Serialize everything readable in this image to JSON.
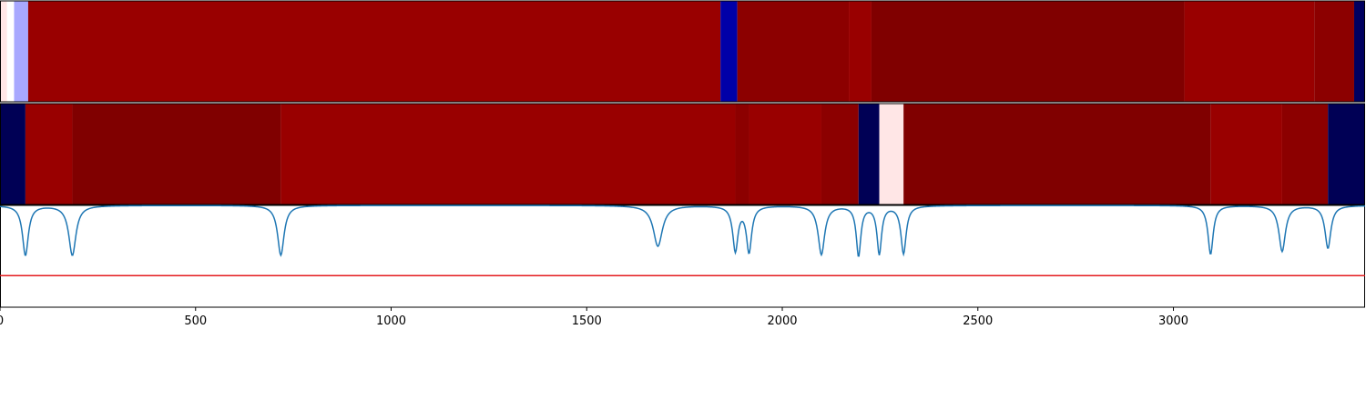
{
  "chart_data": [
    {
      "type": "heatmap",
      "x_range": [
        0,
        3490
      ],
      "segments": [
        {
          "x0": 0,
          "x1": 18,
          "color": "#ffe6e6"
        },
        {
          "x0": 18,
          "x1": 36,
          "color": "#ffffff"
        },
        {
          "x0": 36,
          "x1": 72,
          "color": "#a8a8ff"
        },
        {
          "x0": 72,
          "x1": 1842,
          "color": "#990000"
        },
        {
          "x0": 1842,
          "x1": 1885,
          "color": "#0000a8"
        },
        {
          "x0": 1885,
          "x1": 2170,
          "color": "#8c0000"
        },
        {
          "x0": 2170,
          "x1": 2228,
          "color": "#990000"
        },
        {
          "x0": 2228,
          "x1": 3028,
          "color": "#800000"
        },
        {
          "x0": 3028,
          "x1": 3360,
          "color": "#990000"
        },
        {
          "x0": 3360,
          "x1": 3462,
          "color": "#8c0000"
        },
        {
          "x0": 3462,
          "x1": 3490,
          "color": "#000060"
        }
      ]
    },
    {
      "type": "heatmap",
      "x_range": [
        0,
        3490
      ],
      "segments": [
        {
          "x0": 0,
          "x1": 65,
          "color": "#000055"
        },
        {
          "x0": 65,
          "x1": 185,
          "color": "#990000"
        },
        {
          "x0": 185,
          "x1": 718,
          "color": "#800000"
        },
        {
          "x0": 718,
          "x1": 1880,
          "color": "#990000"
        },
        {
          "x0": 1880,
          "x1": 1915,
          "color": "#8c0000"
        },
        {
          "x0": 1915,
          "x1": 2100,
          "color": "#990000"
        },
        {
          "x0": 2100,
          "x1": 2195,
          "color": "#8c0000"
        },
        {
          "x0": 2195,
          "x1": 2248,
          "color": "#000055"
        },
        {
          "x0": 2248,
          "x1": 2310,
          "color": "#ffe6e6"
        },
        {
          "x0": 2310,
          "x1": 3095,
          "color": "#800000"
        },
        {
          "x0": 3095,
          "x1": 3278,
          "color": "#990000"
        },
        {
          "x0": 3278,
          "x1": 3395,
          "color": "#8c0000"
        },
        {
          "x0": 3395,
          "x1": 3490,
          "color": "#000055"
        }
      ]
    },
    {
      "type": "line",
      "x_range": [
        0,
        3490
      ],
      "y_range": [
        0,
        1
      ],
      "baseline": 1.0,
      "threshold": 0.31,
      "line_color": "#1f77b4",
      "threshold_color": "#e41a1c",
      "dips": [
        {
          "x": 65,
          "depth": 0.49,
          "width": 9
        },
        {
          "x": 185,
          "depth": 0.49,
          "width": 11
        },
        {
          "x": 718,
          "depth": 0.49,
          "width": 10
        },
        {
          "x": 1682,
          "depth": 0.4,
          "width": 14
        },
        {
          "x": 1880,
          "depth": 0.44,
          "width": 8
        },
        {
          "x": 1915,
          "depth": 0.45,
          "width": 8
        },
        {
          "x": 2100,
          "depth": 0.48,
          "width": 10
        },
        {
          "x": 2195,
          "depth": 0.49,
          "width": 7
        },
        {
          "x": 2248,
          "depth": 0.47,
          "width": 7
        },
        {
          "x": 2310,
          "depth": 0.47,
          "width": 8
        },
        {
          "x": 3095,
          "depth": 0.48,
          "width": 8
        },
        {
          "x": 3278,
          "depth": 0.45,
          "width": 10
        },
        {
          "x": 3395,
          "depth": 0.42,
          "width": 9
        }
      ],
      "x_ticks": [
        0,
        500,
        1000,
        1500,
        2000,
        2500,
        3000
      ],
      "x_tick_labels": [
        "0",
        "500",
        "1000",
        "1500",
        "2000",
        "2500",
        "3000"
      ]
    }
  ]
}
